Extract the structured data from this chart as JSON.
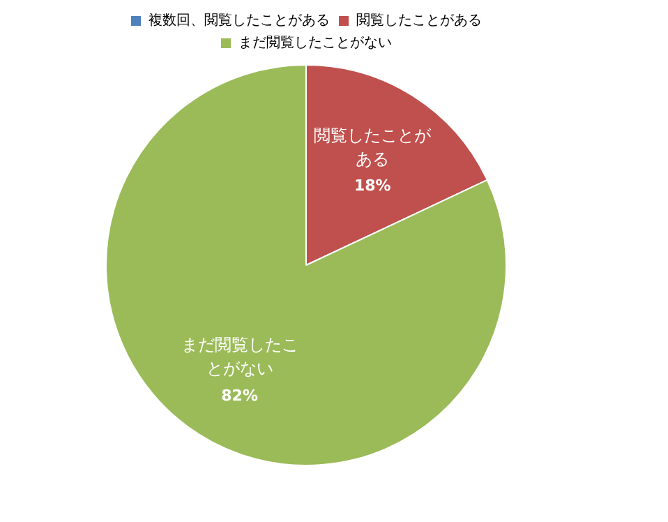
{
  "chart_data": {
    "type": "pie",
    "categories": [
      "複数回、閲覧したことがある",
      "閲覧したことがある",
      "まだ閲覧したことがない"
    ],
    "values": [
      0,
      18,
      82
    ],
    "colors": [
      "#4f81bd",
      "#c0504d",
      "#9bbb59"
    ],
    "value_labels": [
      null,
      "18%",
      "82%"
    ],
    "legend": "top"
  }
}
